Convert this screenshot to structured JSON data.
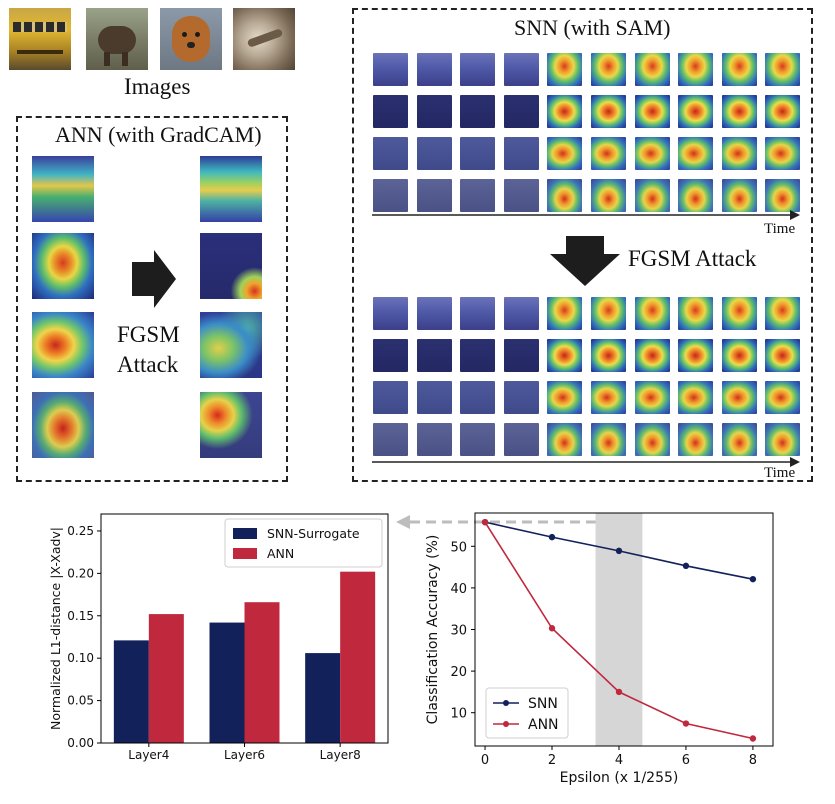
{
  "images_label": "Images",
  "image_thumbs": [
    "school-bus",
    "elephant",
    "dog",
    "lizard"
  ],
  "ann_panel": {
    "title": "ANN (with GradCAM)",
    "arrow_text_line1": "FGSM",
    "arrow_text_line2": "Attack"
  },
  "snn_panel": {
    "title": "SNN (with SAM)",
    "time_label_top": "Time",
    "time_label_bottom": "Time",
    "attack_label": "FGSM Attack"
  },
  "colors": {
    "navy": "#13215a",
    "crimson": "#c0283d",
    "shade": "#d6d6d6",
    "arrow_gray": "#bdbdbd"
  },
  "chart_data": [
    {
      "type": "bar",
      "categories": [
        "Layer4",
        "Layer6",
        "Layer8"
      ],
      "series": [
        {
          "name": "SNN-Surrogate",
          "values": [
            0.121,
            0.142,
            0.106
          ],
          "color": "#13215a"
        },
        {
          "name": "ANN",
          "values": [
            0.152,
            0.166,
            0.202
          ],
          "color": "#c0283d"
        }
      ],
      "title": "",
      "xlabel": "",
      "ylabel": "Normalized L1-distance |X-Xadv|",
      "ylim": [
        0,
        0.27
      ],
      "yticks": [
        "0.00",
        "0.05",
        "0.10",
        "0.15",
        "0.20",
        "0.25"
      ],
      "ytick_values": [
        0,
        0.05,
        0.1,
        0.15,
        0.2,
        0.25
      ],
      "legend": "top-right",
      "grid": false
    },
    {
      "type": "line",
      "x": [
        0,
        2,
        4,
        6,
        8
      ],
      "series": [
        {
          "name": "SNN",
          "values": [
            55.8,
            52.2,
            48.9,
            45.3,
            42.1
          ],
          "color": "#13215a"
        },
        {
          "name": "ANN",
          "values": [
            55.8,
            30.3,
            15.0,
            7.4,
            3.8
          ],
          "color": "#c0283d"
        }
      ],
      "title": "",
      "xlabel": "Epsilon (x 1/255)",
      "ylabel": "Classification Accuracy (%)",
      "xlim": [
        -0.3,
        8.6
      ],
      "ylim": [
        2,
        58
      ],
      "xticks": [
        "0",
        "2",
        "4",
        "6",
        "8"
      ],
      "xtick_values": [
        0,
        2,
        4,
        6,
        8
      ],
      "yticks": [
        "10",
        "20",
        "30",
        "40",
        "50"
      ],
      "ytick_values": [
        10,
        20,
        30,
        40,
        50
      ],
      "highlight_x_range": [
        3.3,
        4.7
      ],
      "legend": "bottom-left",
      "grid": false
    }
  ]
}
